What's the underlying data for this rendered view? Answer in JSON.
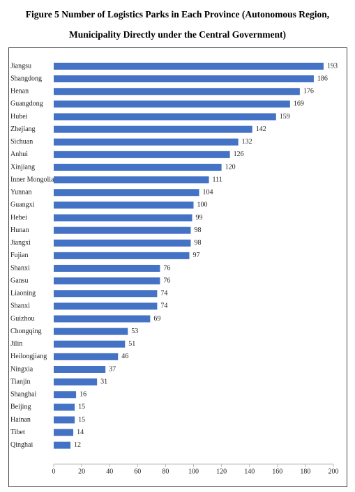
{
  "chart_data": {
    "type": "bar",
    "orientation": "horizontal",
    "title": "Figure 5 Number of Logistics Parks in Each Province (Autonomous Region, Municipality Directly under the Central Government)",
    "categories": [
      "Jiangsu",
      "Shangdong",
      "Henan",
      "Guangdong",
      "Hubei",
      "Zhejiang",
      "Sichuan",
      "Anhui",
      "Xinjiang",
      "Inner Mongolia",
      "Yunnan",
      "Guangxi",
      "Hebei",
      "Hunan",
      "Jiangxi",
      "Fujian",
      "Shanxi",
      "Gansu",
      "Liaoning",
      "Shanxi",
      "Guizhou",
      "Chongqing",
      "Jilin",
      "Heilongjiang",
      "Ningxia",
      "Tianjin",
      "Shanghai",
      "Beijing",
      "Hainan",
      "Tibet",
      "Qinghai"
    ],
    "values": [
      193,
      186,
      176,
      169,
      159,
      142,
      132,
      126,
      120,
      111,
      104,
      100,
      99,
      98,
      98,
      97,
      76,
      76,
      74,
      74,
      69,
      53,
      51,
      46,
      37,
      31,
      16,
      15,
      15,
      14,
      12
    ],
    "color": "#4472c4",
    "xlim": [
      0,
      200
    ],
    "xticks": [
      0,
      20,
      40,
      60,
      80,
      100,
      120,
      140,
      160,
      180,
      200
    ],
    "grid": false
  }
}
